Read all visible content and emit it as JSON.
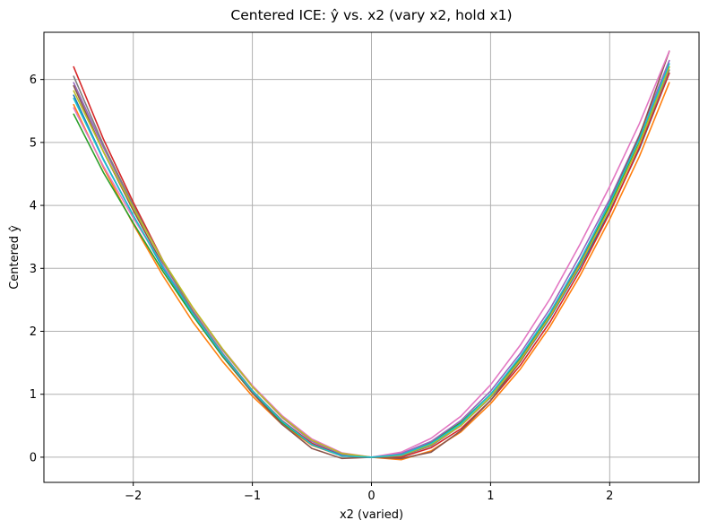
{
  "chart_data": {
    "type": "line",
    "title": "Centered ICE: ŷ vs. x2 (vary x2, hold x1)",
    "xlabel": "x2 (varied)",
    "ylabel": "Centered ŷ",
    "xlim": [
      -2.75,
      2.75
    ],
    "ylim": [
      -0.4,
      6.75
    ],
    "xticks": [
      -2,
      -1,
      0,
      1,
      2
    ],
    "xtick_labels": [
      "−2",
      "−1",
      "0",
      "1",
      "2"
    ],
    "yticks": [
      0,
      1,
      2,
      3,
      4,
      5,
      6
    ],
    "ytick_labels": [
      "0",
      "1",
      "2",
      "3",
      "4",
      "5",
      "6"
    ],
    "grid": true,
    "legend": "none",
    "x": [
      -2.5,
      -2.25,
      -2.0,
      -1.75,
      -1.5,
      -1.25,
      -1.0,
      -0.75,
      -0.5,
      -0.25,
      0.0,
      0.25,
      0.5,
      0.75,
      1.0,
      1.25,
      1.5,
      1.75,
      2.0,
      2.25,
      2.5
    ],
    "series": [
      {
        "color": "#1f77b4",
        "values": [
          5.75,
          4.73,
          3.84,
          3.0,
          2.28,
          1.64,
          1.06,
          0.58,
          0.22,
          0.03,
          0.0,
          0.02,
          0.2,
          0.5,
          0.95,
          1.52,
          2.22,
          3.02,
          3.9,
          4.9,
          6.1
        ]
      },
      {
        "color": "#ff7f0e",
        "values": [
          5.6,
          4.6,
          3.7,
          2.88,
          2.15,
          1.52,
          0.97,
          0.52,
          0.19,
          0.02,
          0.0,
          -0.04,
          0.1,
          0.4,
          0.85,
          1.4,
          2.08,
          2.88,
          3.78,
          4.78,
          5.95
        ]
      },
      {
        "color": "#2ca02c",
        "values": [
          5.45,
          4.52,
          3.72,
          2.95,
          2.25,
          1.6,
          1.02,
          0.55,
          0.2,
          0.02,
          0.0,
          0.05,
          0.24,
          0.55,
          1.0,
          1.58,
          2.28,
          3.1,
          4.0,
          5.0,
          6.2
        ]
      },
      {
        "color": "#d62728",
        "values": [
          6.2,
          5.05,
          4.05,
          3.12,
          2.32,
          1.64,
          1.05,
          0.58,
          0.22,
          0.02,
          0.0,
          0.0,
          0.15,
          0.45,
          0.9,
          1.46,
          2.15,
          2.96,
          3.88,
          4.92,
          6.1
        ]
      },
      {
        "color": "#9467bd",
        "values": [
          5.95,
          4.92,
          3.98,
          3.12,
          2.36,
          1.7,
          1.12,
          0.63,
          0.25,
          0.05,
          0.0,
          0.06,
          0.25,
          0.58,
          1.05,
          1.65,
          2.36,
          3.2,
          4.1,
          5.12,
          6.3
        ]
      },
      {
        "color": "#8c564b",
        "values": [
          5.9,
          4.85,
          3.92,
          3.05,
          2.28,
          1.62,
          1.02,
          0.52,
          0.14,
          -0.02,
          0.0,
          -0.02,
          0.08,
          0.42,
          0.9,
          1.52,
          2.25,
          3.1,
          4.05,
          5.1,
          6.45
        ]
      },
      {
        "color": "#e377c2",
        "values": [
          5.55,
          4.62,
          3.8,
          3.04,
          2.36,
          1.72,
          1.14,
          0.66,
          0.29,
          0.07,
          0.0,
          0.08,
          0.3,
          0.65,
          1.15,
          1.78,
          2.52,
          3.38,
          4.3,
          5.3,
          6.45
        ]
      },
      {
        "color": "#7f7f7f",
        "values": [
          6.05,
          4.96,
          4.0,
          3.1,
          2.32,
          1.65,
          1.06,
          0.57,
          0.2,
          0.02,
          0.0,
          0.02,
          0.18,
          0.5,
          0.96,
          1.55,
          2.25,
          3.06,
          3.96,
          4.98,
          6.15
        ]
      },
      {
        "color": "#bcbd22",
        "values": [
          5.82,
          4.85,
          3.96,
          3.12,
          2.38,
          1.72,
          1.12,
          0.64,
          0.27,
          0.06,
          0.0,
          0.03,
          0.2,
          0.5,
          0.96,
          1.54,
          2.24,
          3.05,
          3.96,
          4.98,
          6.2
        ]
      },
      {
        "color": "#17becf",
        "values": [
          5.7,
          4.72,
          3.84,
          3.02,
          2.28,
          1.63,
          1.05,
          0.57,
          0.2,
          0.02,
          0.0,
          0.04,
          0.22,
          0.53,
          1.0,
          1.6,
          2.3,
          3.12,
          4.04,
          5.06,
          6.25
        ]
      }
    ]
  }
}
